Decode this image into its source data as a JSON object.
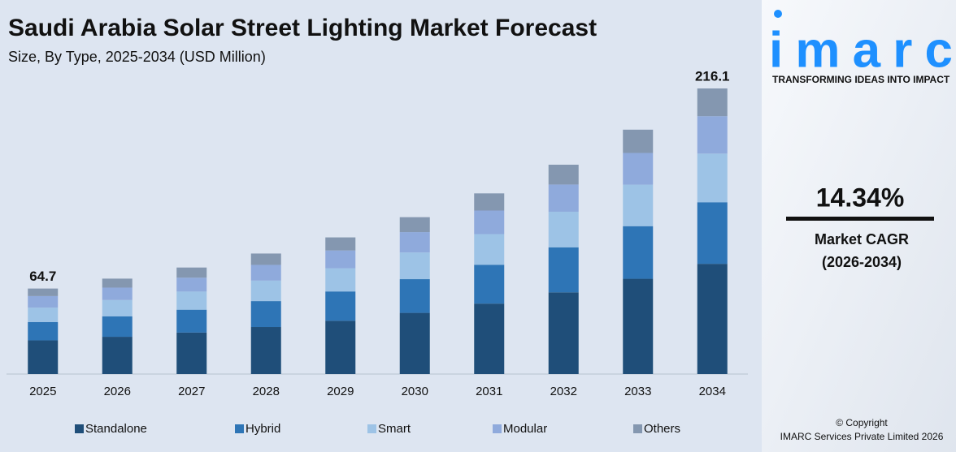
{
  "chart_data": {
    "type": "stacked-bar",
    "title": "Saudi Arabia Solar Street Lighting Market Forecast",
    "subtitle": "Size, By Type, 2025-2034 (USD Million)",
    "categories": [
      "2025",
      "2026",
      "2027",
      "2028",
      "2029",
      "2030",
      "2031",
      "2032",
      "2033",
      "2034"
    ],
    "series": [
      {
        "name": "Standalone",
        "color": "#1f4e79",
        "values": [
          25.5,
          28.2,
          31.4,
          35.6,
          40.3,
          46.3,
          53.3,
          61.8,
          72.1,
          83.4
        ]
      },
      {
        "name": "Hybrid",
        "color": "#2e75b6",
        "values": [
          13.9,
          15.5,
          17.3,
          19.6,
          22.2,
          25.5,
          29.4,
          34.1,
          39.8,
          46.6
        ]
      },
      {
        "name": "Smart",
        "color": "#9dc3e6",
        "values": [
          10.8,
          12.3,
          13.7,
          15.5,
          17.6,
          20.2,
          23.2,
          26.9,
          31.4,
          36.8
        ]
      },
      {
        "name": "Modular",
        "color": "#8faadc",
        "values": [
          8.8,
          9.4,
          10.5,
          11.9,
          13.4,
          15.4,
          17.8,
          20.6,
          24.0,
          28.3
        ]
      },
      {
        "name": "Others",
        "color": "#8497b0",
        "values": [
          5.7,
          6.8,
          7.7,
          8.6,
          9.9,
          11.3,
          13.0,
          15.0,
          17.6,
          21.0
        ]
      }
    ],
    "totals": [
      64.7,
      null,
      null,
      null,
      null,
      null,
      null,
      null,
      null,
      216.1
    ],
    "legend": "bottom"
  },
  "sidebar": {
    "logo": "imarc",
    "tagline": "TRANSFORMING IDEAS INTO IMPACT",
    "cagr": "14.34%",
    "cagr_label": "Market CAGR",
    "cagr_period": "(2026-2034)",
    "copyright": "© Copyright",
    "company": "IMARC Services Private Limited 2026"
  }
}
